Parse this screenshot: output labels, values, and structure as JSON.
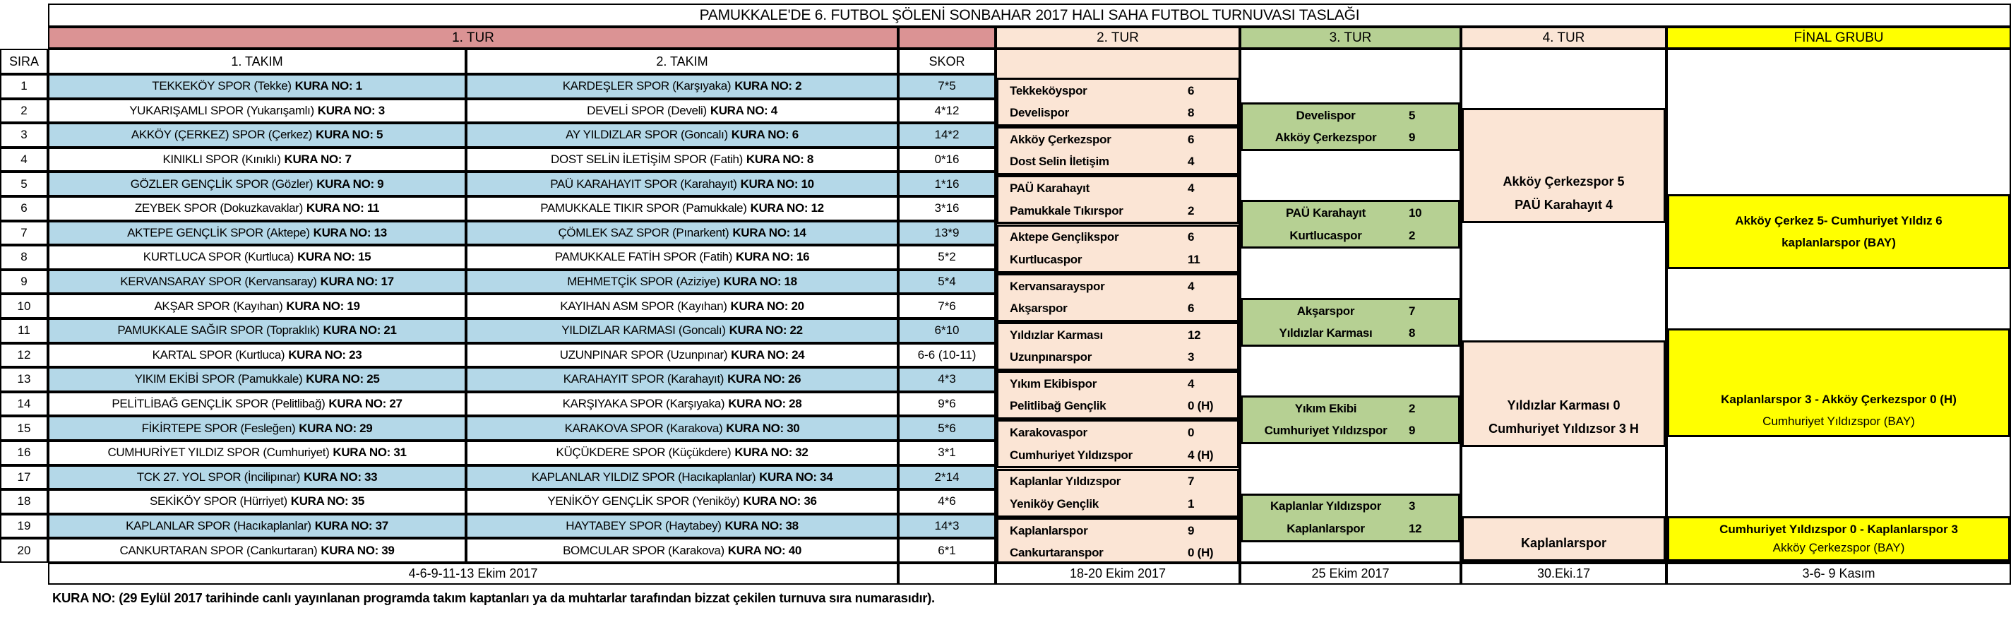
{
  "title": "PAMUKKALE'DE 6. FUTBOL ŞÖLENİ SONBAHAR 2017 HALI SAHA FUTBOL TURNUVASI TASLAĞI",
  "rounds": {
    "tur1": "1. TUR",
    "tur2": "2. TUR",
    "tur3": "3. TUR",
    "tur4": "4. TUR",
    "final": "FİNAL GRUBU"
  },
  "columns": {
    "sira": "SIRA",
    "takim1": "1. TAKIM",
    "takim2": "2. TAKIM",
    "skor": "SKOR"
  },
  "dates": {
    "tur1": "4-6-9-11-13 Ekim 2017",
    "tur2": "18-20 Ekim 2017",
    "tur3": "25 Ekim 2017",
    "tur4": "30.Eki.17",
    "final": "3-6- 9 Kasım"
  },
  "footnote": "KURA NO: (29 Eylül 2017 tarihinde canlı yayınlanan programda takım kaptanları ya da muhtarlar tarafından bizzat çekilen turnuva sıra numarasıdır).",
  "rows": [
    {
      "sira": "1",
      "team1": "TEKKEKÖY SPOR (Tekke)",
      "team1_kura": "KURA NO: 1",
      "team2": "KARDEŞLER SPOR (Karşıyaka)",
      "team2_kura": "KURA NO: 2",
      "skor": "7*5"
    },
    {
      "sira": "2",
      "team1": "YUKARIŞAMLI SPOR (Yukarışamlı)",
      "team1_kura": "KURA NO: 3",
      "team2": "DEVELİ SPOR (Develi)",
      "team2_kura": "KURA NO:  4",
      "skor": "4*12"
    },
    {
      "sira": "3",
      "team1": "AKKÖY (ÇERKEZ) SPOR (Çerkez)",
      "team1_kura": "KURA NO: 5",
      "team2": "AY YILDIZLAR SPOR (Goncalı)",
      "team2_kura": "KURA NO: 6",
      "skor": "14*2"
    },
    {
      "sira": "4",
      "team1": "KINIKLI SPOR (Kınıklı)",
      "team1_kura": "KURA NO: 7",
      "team2": "DOST SELİN İLETİŞİM SPOR (Fatih)",
      "team2_kura": "KURA NO: 8",
      "skor": "0*16"
    },
    {
      "sira": "5",
      "team1": "GÖZLER GENÇLİK SPOR (Gözler)",
      "team1_kura": "KURA NO:  9",
      "team2": "PAÜ KARAHAYIT SPOR (Karahayıt)",
      "team2_kura": "KURA NO:  10",
      "skor": "1*16"
    },
    {
      "sira": "6",
      "team1": "ZEYBEK SPOR (Dokuzkavaklar)",
      "team1_kura": "KURA NO: 11",
      "team2": "PAMUKKALE TIKIR SPOR (Pamukkale)",
      "team2_kura": "KURA NO: 12",
      "skor": "3*16"
    },
    {
      "sira": "7",
      "team1": "AKTEPE GENÇLİK SPOR (Aktepe)",
      "team1_kura": "KURA NO: 13",
      "team2": "ÇÖMLEK SAZ SPOR (Pınarkent)",
      "team2_kura": "KURA NO:  14",
      "skor": "13*9"
    },
    {
      "sira": "8",
      "team1": "KURTLUCA SPOR (Kurtluca)",
      "team1_kura": "KURA NO: 15",
      "team2": "PAMUKKALE FATİH SPOR (Fatih)",
      "team2_kura": "KURA NO:  16",
      "skor": "5*2"
    },
    {
      "sira": "9",
      "team1": "KERVANSARAY SPOR (Kervansaray)",
      "team1_kura": "KURA NO:  17",
      "team2": "MEHMETÇİK SPOR (Aziziye)",
      "team2_kura": "KURA NO: 18",
      "skor": "5*4"
    },
    {
      "sira": "10",
      "team1": "AKŞAR SPOR (Kayıhan)",
      "team1_kura": "KURA NO:  19",
      "team2": "KAYIHAN ASM SPOR (Kayıhan)",
      "team2_kura": "KURA NO: 20",
      "skor": "7*6"
    },
    {
      "sira": "11",
      "team1": "PAMUKKALE SAĞIR SPOR (Topraklık)",
      "team1_kura": "KURA NO: 21",
      "team2": "YILDIZLAR KARMASI (Goncalı)",
      "team2_kura": "KURA NO: 22",
      "skor": "6*10"
    },
    {
      "sira": "12",
      "team1": "KARTAL SPOR (Kurtluca)",
      "team1_kura": "KURA NO: 23",
      "team2": "UZUNPINAR SPOR (Uzunpınar)",
      "team2_kura": "KURA NO: 24",
      "skor": "6-6 (10-11)"
    },
    {
      "sira": "13",
      "team1": "YIKIM EKİBİ SPOR (Pamukkale)",
      "team1_kura": "KURA NO:  25",
      "team2": "KARAHAYIT SPOR (Karahayıt)",
      "team2_kura": "KURA NO: 26",
      "skor": "4*3"
    },
    {
      "sira": "14",
      "team1": "PELİTLİBAĞ GENÇLİK SPOR (Pelitlibağ)",
      "team1_kura": "KURA NO: 27",
      "team2": "KARŞIYAKA SPOR (Karşıyaka)",
      "team2_kura": "KURA NO: 28",
      "skor": "9*6"
    },
    {
      "sira": "15",
      "team1": "FİKİRTEPE SPOR (Fesleğen)",
      "team1_kura": "KURA NO: 29",
      "team2": "KARAKOVA SPOR (Karakova)",
      "team2_kura": "KURA NO: 30",
      "skor": "5*6"
    },
    {
      "sira": "16",
      "team1": "CUMHURİYET YILDIZ SPOR (Cumhuriyet)",
      "team1_kura": "KURA NO: 31",
      "team2": "KÜÇÜKDERE SPOR (Küçükdere)",
      "team2_kura": "KURA NO:  32",
      "skor": "3*1"
    },
    {
      "sira": "17",
      "team1": "TCK 27. YOL SPOR (İncilipınar)",
      "team1_kura": "KURA NO: 33",
      "team2": "KAPLANLAR YILDIZ SPOR (Hacıkaplanlar)",
      "team2_kura": "KURA NO: 34",
      "skor": "2*14"
    },
    {
      "sira": "18",
      "team1": "SEKİKÖY SPOR (Hürriyet)",
      "team1_kura": "KURA NO: 35",
      "team2": "YENİKÖY GENÇLİK SPOR (Yeniköy)",
      "team2_kura": "KURA NO: 36",
      "skor": "4*6"
    },
    {
      "sira": "19",
      "team1": "KAPLANLAR SPOR (Hacıkaplanlar)",
      "team1_kura": "KURA NO: 37",
      "team2": "HAYTABEY SPOR (Haytabey)",
      "team2_kura": "KURA NO: 38",
      "skor": "14*3"
    },
    {
      "sira": "20",
      "team1": "CANKURTARAN SPOR (Cankurtaran)",
      "team1_kura": "KURA NO:  39",
      "team2": "BOMCULAR SPOR (Karakova)",
      "team2_kura": "KURA NO: 40",
      "skor": "6*1"
    }
  ],
  "tur2_matches": [
    {
      "team_a": "Tekkeköyspor",
      "score_a": "6",
      "team_b": "Develispor",
      "score_b": "8"
    },
    {
      "team_a": "Akköy Çerkezspor",
      "score_a": "6",
      "team_b": "Dost Selin İletişim",
      "score_b": "4"
    },
    {
      "team_a": "PAÜ Karahayıt",
      "score_a": "4",
      "team_b": "Pamukkale Tıkırspor",
      "score_b": "2"
    },
    {
      "team_a": "Aktepe Gençlikspor",
      "score_a": "6",
      "team_b": "Kurtlucaspor",
      "score_b": "11"
    },
    {
      "team_a": "Kervansarayspor",
      "score_a": "4",
      "team_b": "Akşarspor",
      "score_b": "6"
    },
    {
      "team_a": "Yıldızlar Karması",
      "score_a": "12",
      "team_b": "Uzunpınarspor",
      "score_b": "3"
    },
    {
      "team_a": "Yıkım Ekibispor",
      "score_a": "4",
      "team_b": "Pelitlibağ Gençlik",
      "score_b": "0 (H)"
    },
    {
      "team_a": "Karakovaspor",
      "score_a": "0",
      "team_b": "Cumhuriyet Yıldızspor",
      "score_b": "4 (H)"
    },
    {
      "team_a": "Kaplanlar Yıldızspor",
      "score_a": "7",
      "team_b": "Yeniköy Gençlik",
      "score_b": "1"
    },
    {
      "team_a": "Kaplanlarspor",
      "score_a": "9",
      "team_b": "Cankurtaranspor",
      "score_b": "0 (H)"
    }
  ],
  "tur3_matches": [
    {
      "team_a": "Develispor",
      "score_a": "5",
      "team_b": "Akköy Çerkezspor",
      "score_b": "9"
    },
    {
      "team_a": "PAÜ Karahayıt",
      "score_a": "10",
      "team_b": "Kurtlucaspor",
      "score_b": "2"
    },
    {
      "team_a": "Akşarspor",
      "score_a": "7",
      "team_b": "Yıldızlar Karması",
      "score_b": "8"
    },
    {
      "team_a": "Yıkım Ekibi",
      "score_a": "2",
      "team_b": "Cumhuriyet Yıldızspor",
      "score_b": "9"
    },
    {
      "team_a": "Kaplanlar Yıldızspor",
      "score_a": "3",
      "team_b": "Kaplanlarspor",
      "score_b": "12"
    }
  ],
  "tur4_cells": [
    {
      "line1": "Akköy Çerkezspor 5",
      "line2": "PAÜ Karahayıt 4"
    },
    {
      "line1": "Yıldızlar Karması 0",
      "line2": "Cumhuriyet Yıldızsor 3 H"
    },
    {
      "line1": "Kaplanlarspor",
      "line2": ""
    }
  ],
  "final_cells": [
    {
      "line1": "Akköy Çerkez 5- Cumhuriyet Yıldız 6",
      "line2": "kaplanlarspor (BAY)"
    },
    {
      "line1": "Kaplanlarspor 3 - Akköy Çerkezspor 0 (H)",
      "line2": "Cumhuriyet Yıldızspor (BAY)"
    },
    {
      "line1": "Cumhuriyet Yıldızspor 0 - Kaplanlarspor 3",
      "line2": "Akköy Çerkezspor (BAY)"
    }
  ],
  "colors": {
    "round1_header": "#DB9394",
    "round2_fill": "#FBE5D5",
    "round3_fill": "#B6D093",
    "final_fill": "#FFFF00",
    "row_highlight": "#B4D8E8",
    "border": "#000000"
  }
}
